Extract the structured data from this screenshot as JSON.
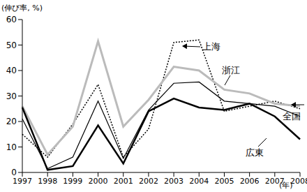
{
  "chart_data": {
    "type": "line",
    "y_label": "(伸び率, %)",
    "x_label": "(年)",
    "categories": [
      "1997",
      "1998",
      "1999",
      "2000",
      "2001",
      "2002",
      "2003",
      "2004",
      "2005",
      "2006",
      "2007",
      "2008"
    ],
    "series": [
      {
        "name": "上海",
        "color": "#000000",
        "line_style": "dotted",
        "values": [
          15,
          6,
          19,
          34.5,
          6,
          17,
          51,
          52,
          24,
          26,
          28,
          25
        ]
      },
      {
        "name": "浙江",
        "color": "#bbbbbb",
        "line_style": "solid",
        "values": [
          26,
          7,
          18,
          51.5,
          18,
          28.5,
          41.5,
          40,
          32.5,
          31,
          27,
          26
        ]
      },
      {
        "name": "全国",
        "color": "#000000",
        "line_style": "solid",
        "values": [
          21,
          1.5,
          6,
          28,
          5.5,
          24.5,
          35,
          35.5,
          28,
          27,
          26,
          22
        ]
      },
      {
        "name": "広東",
        "color": "#000000",
        "line_style": "solid",
        "values": [
          25.5,
          1,
          2.5,
          18.5,
          3.5,
          24,
          29,
          25.5,
          24.5,
          27,
          22,
          13
        ]
      }
    ],
    "ylim": [
      0,
      60
    ],
    "yticks": [
      0,
      10,
      20,
      30,
      40,
      50,
      60
    ],
    "grid": false
  }
}
